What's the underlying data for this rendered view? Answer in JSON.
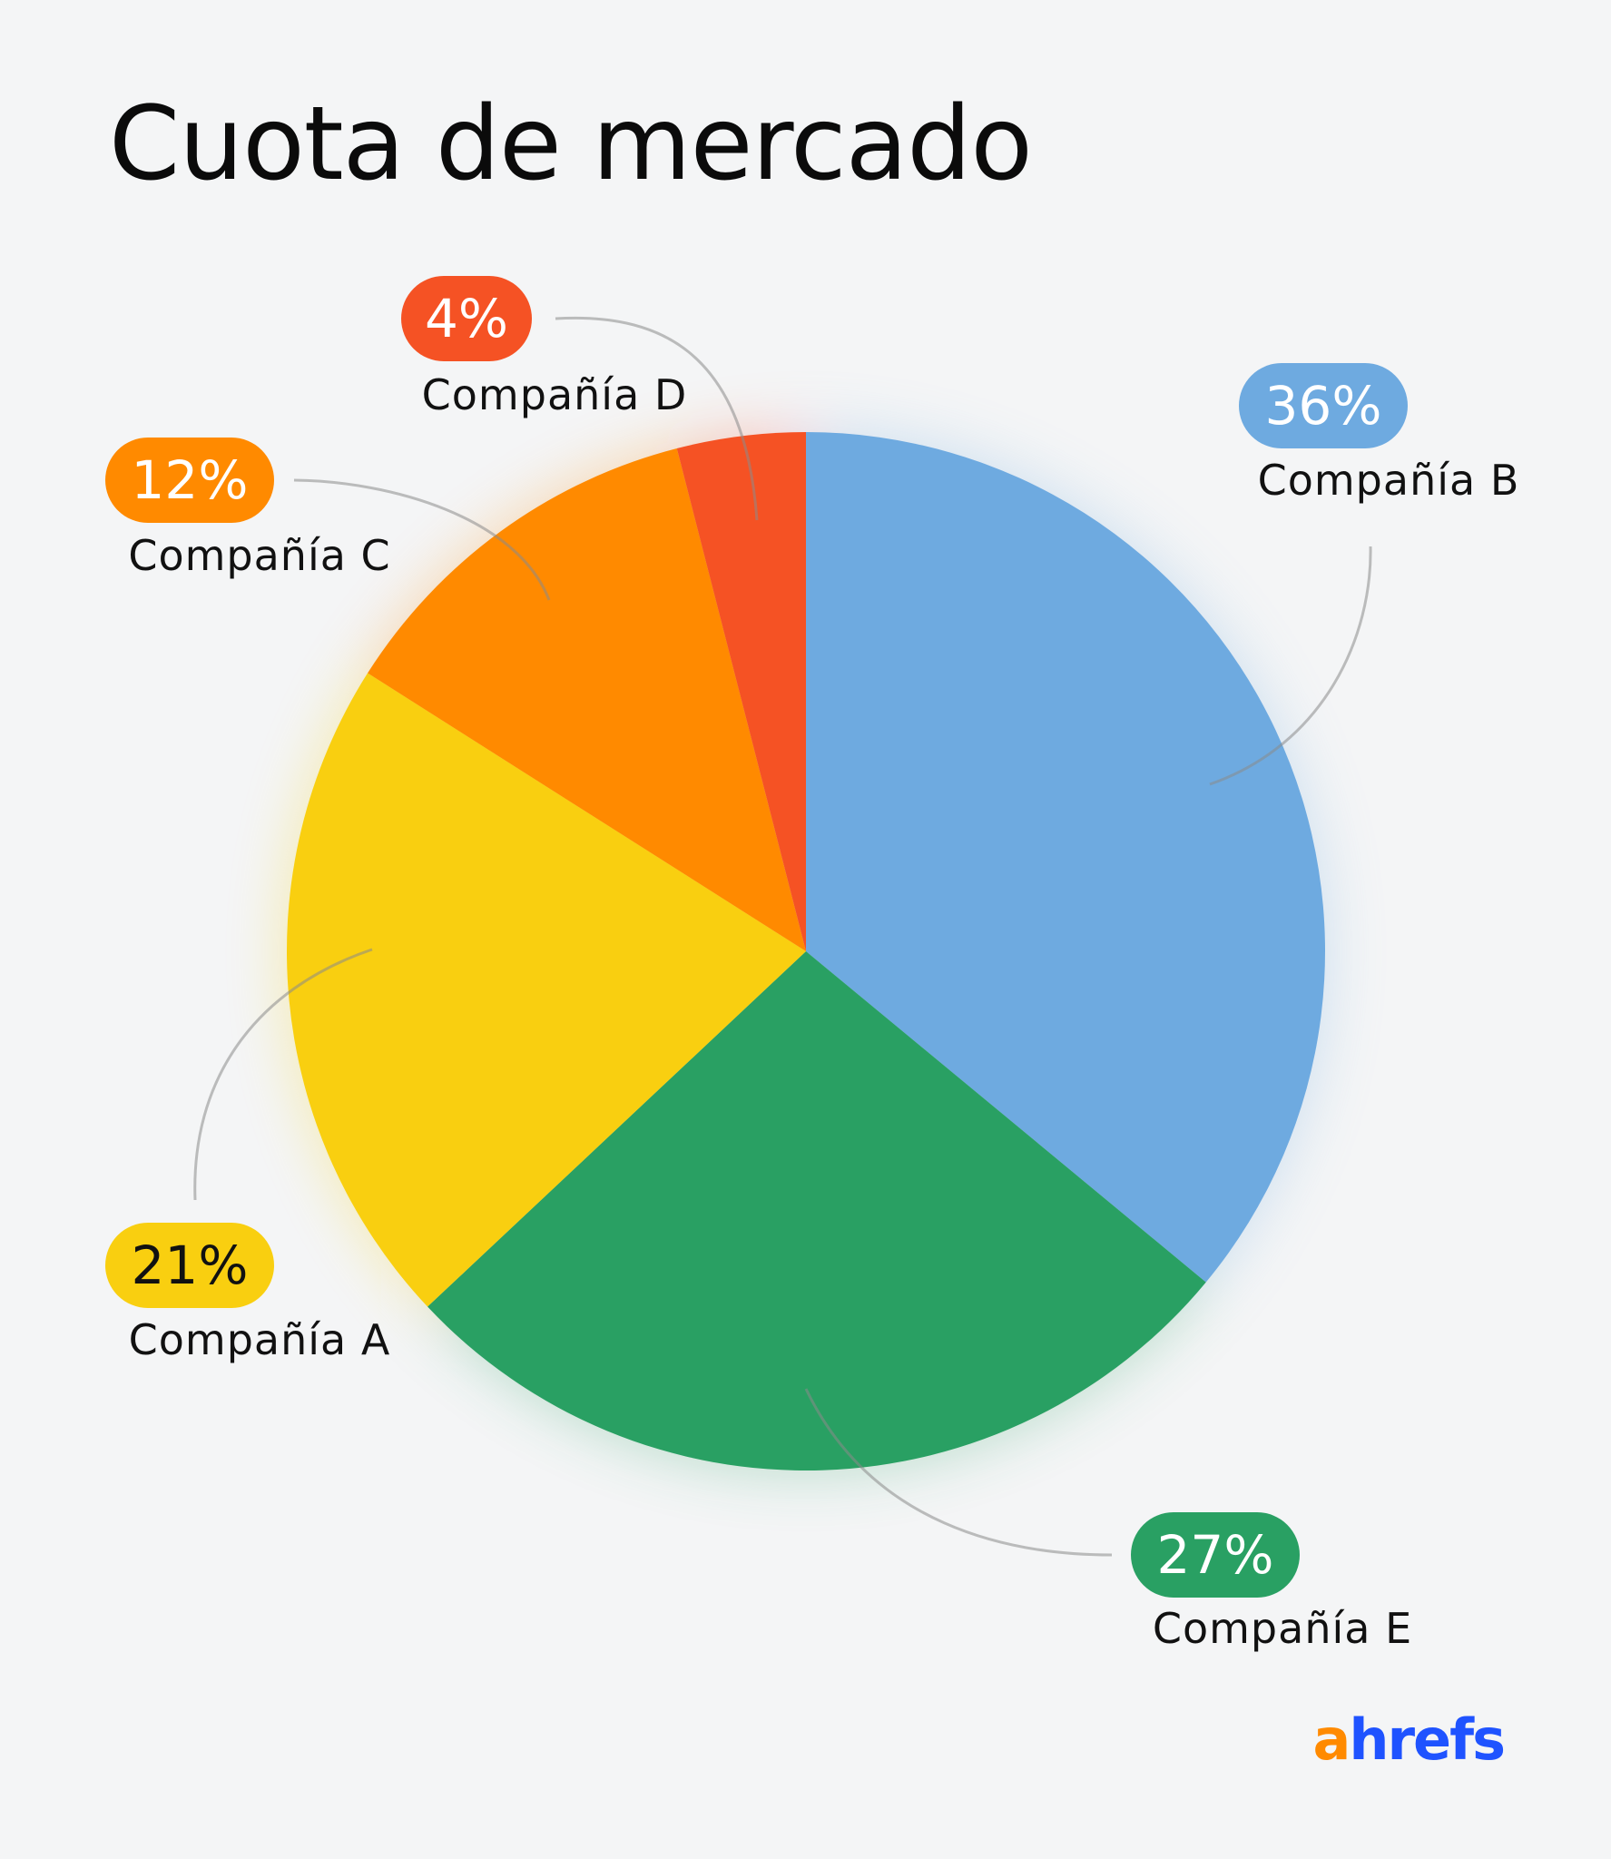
{
  "chart_data": {
    "type": "pie",
    "title": "Cuota de mercado",
    "slices": [
      {
        "name": "Compañía B",
        "value": 36,
        "label": "36%",
        "color": "#6eaae0",
        "text_color": "#ffffff"
      },
      {
        "name": "Compañía E",
        "value": 27,
        "label": "27%",
        "color": "#29a063",
        "text_color": "#ffffff"
      },
      {
        "name": "Compañía A",
        "value": 21,
        "label": "21%",
        "color": "#f9cf10",
        "text_color": "#111111"
      },
      {
        "name": "Compañía C",
        "value": 12,
        "label": "12%",
        "color": "#ff8a00",
        "text_color": "#ffffff"
      },
      {
        "name": "Compañía D",
        "value": 4,
        "label": "4%",
        "color": "#f55224",
        "text_color": "#ffffff"
      }
    ],
    "start_angle": "12 o'clock",
    "direction": "clockwise",
    "legend": "none"
  },
  "logo": {
    "text": "ahrefs",
    "colors": {
      "a": "#ff8a00",
      "hrefs": "#1f53ff"
    }
  }
}
